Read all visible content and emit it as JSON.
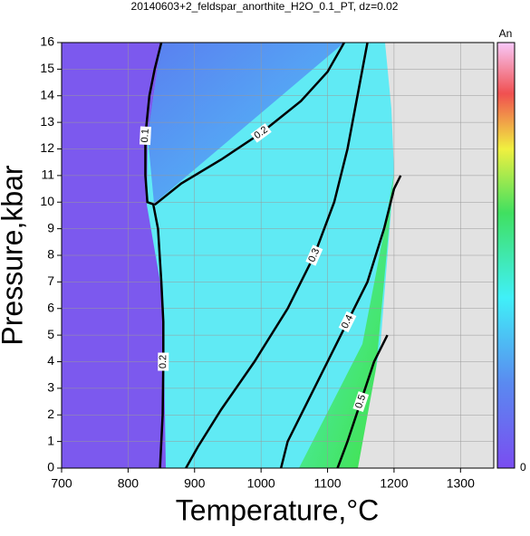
{
  "chart_data": {
    "type": "contour",
    "title": "20140603+2_feldspar_anorthite_H2O_0.1_PT, dz=0.02",
    "x_label": "Temperature,°C",
    "y_label": "Pressure,kbar",
    "colorbar_label": "An",
    "colorbar_min_label": "0",
    "xlim": [
      700,
      1350
    ],
    "xticks": [
      700,
      800,
      900,
      1000,
      1100,
      1200,
      1300
    ],
    "ylim": [
      0,
      16
    ],
    "yticks": [
      0,
      1,
      2,
      3,
      4,
      5,
      6,
      7,
      8,
      9,
      10,
      11,
      12,
      13,
      14,
      15,
      16
    ],
    "grid": true,
    "contours": [
      {
        "level": 0.1,
        "x": [
          850,
          840,
          832,
          826,
          826,
          829,
          840
        ],
        "y": [
          16,
          15,
          14,
          12.5,
          11,
          10,
          9.9
        ]
      },
      {
        "level": 0.2,
        "x": [
          840,
          880,
          940,
          1000,
          1060,
          1100,
          1125
        ],
        "y": [
          9.9,
          10.7,
          11.6,
          12.6,
          13.8,
          14.9,
          16
        ]
      },
      {
        "level": 0.2,
        "x": [
          838,
          845,
          850,
          853,
          853,
          852,
          850,
          848
        ],
        "y": [
          9.9,
          9,
          7,
          5.5,
          4,
          2,
          1,
          0
        ]
      },
      {
        "level": 0.3,
        "x": [
          887,
          905,
          940,
          990,
          1040,
          1080,
          1110,
          1130,
          1145,
          1160
        ],
        "y": [
          0,
          0.8,
          2.2,
          4,
          6,
          8,
          10,
          12,
          14,
          16
        ]
      },
      {
        "level": 0.4,
        "x": [
          1030,
          1040,
          1070,
          1100,
          1130,
          1160,
          1185,
          1200,
          1210
        ],
        "y": [
          0,
          1,
          2.5,
          4,
          5.5,
          7,
          9,
          10.5,
          11
        ]
      },
      {
        "level": 0.5,
        "x": [
          1115,
          1130,
          1150,
          1170,
          1190
        ],
        "y": [
          0,
          1,
          2.5,
          4,
          5
        ]
      }
    ]
  }
}
